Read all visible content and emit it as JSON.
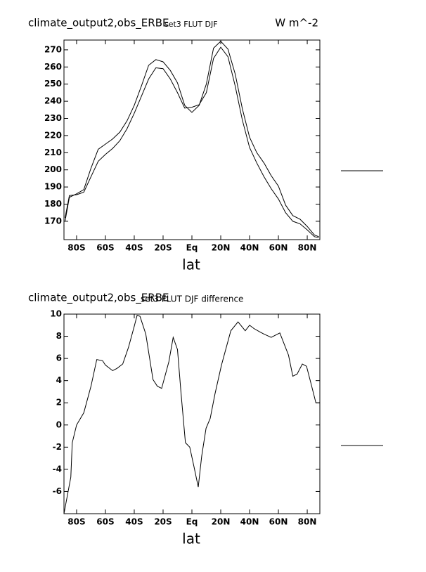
{
  "chart_data": [
    {
      "type": "line",
      "title": "climate_output2,obs_ERBE",
      "subtitle": "set3 FLUT DJF",
      "units": "W m^-2",
      "xlabel": "lat",
      "xlim": [
        -88.75,
        88.75
      ],
      "ylim": [
        159.3,
        275.7
      ],
      "xticks": [
        {
          "value": -80,
          "label": "80S"
        },
        {
          "value": -60,
          "label": "60S"
        },
        {
          "value": -40,
          "label": "40S"
        },
        {
          "value": -20,
          "label": "20S"
        },
        {
          "value": 0,
          "label": "Eq"
        },
        {
          "value": 20,
          "label": "20N"
        },
        {
          "value": 40,
          "label": "40N"
        },
        {
          "value": 60,
          "label": "60N"
        },
        {
          "value": 80,
          "label": "80N"
        }
      ],
      "yticks": [
        170,
        180,
        190,
        200,
        210,
        220,
        230,
        240,
        250,
        260,
        270
      ],
      "x": [
        -88,
        -85,
        -80,
        -75,
        -70,
        -65,
        -60,
        -55,
        -50,
        -45,
        -40,
        -35,
        -30,
        -25,
        -20,
        -15,
        -10,
        -5,
        0,
        5,
        10,
        15,
        20,
        25,
        30,
        35,
        40,
        45,
        50,
        55,
        60,
        65,
        70,
        75,
        80,
        85,
        88
      ],
      "series": [
        {
          "color": "#000000",
          "values": [
            170,
            184,
            186,
            188.5,
            201,
            212,
            215,
            218,
            222,
            228.6,
            237.6,
            249,
            261,
            264.3,
            263,
            258,
            250.7,
            237.6,
            233.5,
            237.6,
            250,
            271,
            275,
            270.4,
            256,
            235.6,
            219,
            210,
            204,
            196.6,
            190.5,
            179.4,
            173.3,
            171.2,
            167,
            162,
            161
          ]
        },
        {
          "color": "#000000",
          "values": [
            172,
            185,
            185.5,
            187,
            196,
            205,
            209,
            212.5,
            217,
            224,
            233,
            243,
            253,
            259.5,
            259,
            253,
            245,
            236,
            236.5,
            238,
            245,
            265,
            271.5,
            266,
            249,
            229,
            213,
            204,
            196,
            189,
            183,
            175,
            170,
            168.5,
            165,
            161,
            160.5
          ]
        }
      ]
    },
    {
      "type": "line",
      "title": "climate_output2,obs_ERBE",
      "subtitle": "set3 FLUT DJF difference",
      "xlabel": "lat",
      "xlim": [
        -88.75,
        88.75
      ],
      "ylim": [
        -8,
        10
      ],
      "xticks": [
        {
          "value": -80,
          "label": "80S"
        },
        {
          "value": -60,
          "label": "60S"
        },
        {
          "value": -40,
          "label": "40S"
        },
        {
          "value": -20,
          "label": "20S"
        },
        {
          "value": 0,
          "label": "Eq"
        },
        {
          "value": 20,
          "label": "20N"
        },
        {
          "value": 40,
          "label": "40N"
        },
        {
          "value": 60,
          "label": "60N"
        },
        {
          "value": 80,
          "label": "80N"
        }
      ],
      "yticks": [
        -6,
        -4,
        -2,
        0,
        2,
        4,
        6,
        8,
        10
      ],
      "x": [
        -88.75,
        -84,
        -83,
        -80,
        -75,
        -70,
        -66,
        -62,
        -60,
        -55,
        -52,
        -48,
        -44,
        -40,
        -38,
        -36,
        -32,
        -27,
        -24,
        -21,
        -16,
        -13,
        -10,
        -7.5,
        -4.5,
        -1.5,
        1.5,
        4.4,
        6.8,
        9.8,
        12.7,
        16,
        20.5,
        27,
        32,
        37,
        40,
        43,
        47,
        50,
        55,
        61,
        67,
        70,
        73,
        76.6,
        79.5,
        82.5,
        86,
        88.75
      ],
      "series": [
        {
          "color": "#000000",
          "values": [
            -8,
            -4.7,
            -1.6,
            0,
            1.1,
            3.5,
            5.9,
            5.8,
            5.4,
            4.9,
            5.1,
            5.5,
            7,
            8.9,
            9.9,
            9.8,
            8.2,
            4.1,
            3.5,
            3.3,
            5.7,
            7.9,
            6.8,
            2.8,
            -1.6,
            -2,
            -3.8,
            -5.6,
            -2.8,
            -0.3,
            0.6,
            2.8,
            5.4,
            8.5,
            9.3,
            8.5,
            9,
            8.7,
            8.4,
            8.2,
            7.9,
            8.3,
            6.3,
            4.4,
            4.6,
            5.5,
            5.3,
            3.8,
            2,
            2
          ]
        }
      ]
    }
  ]
}
